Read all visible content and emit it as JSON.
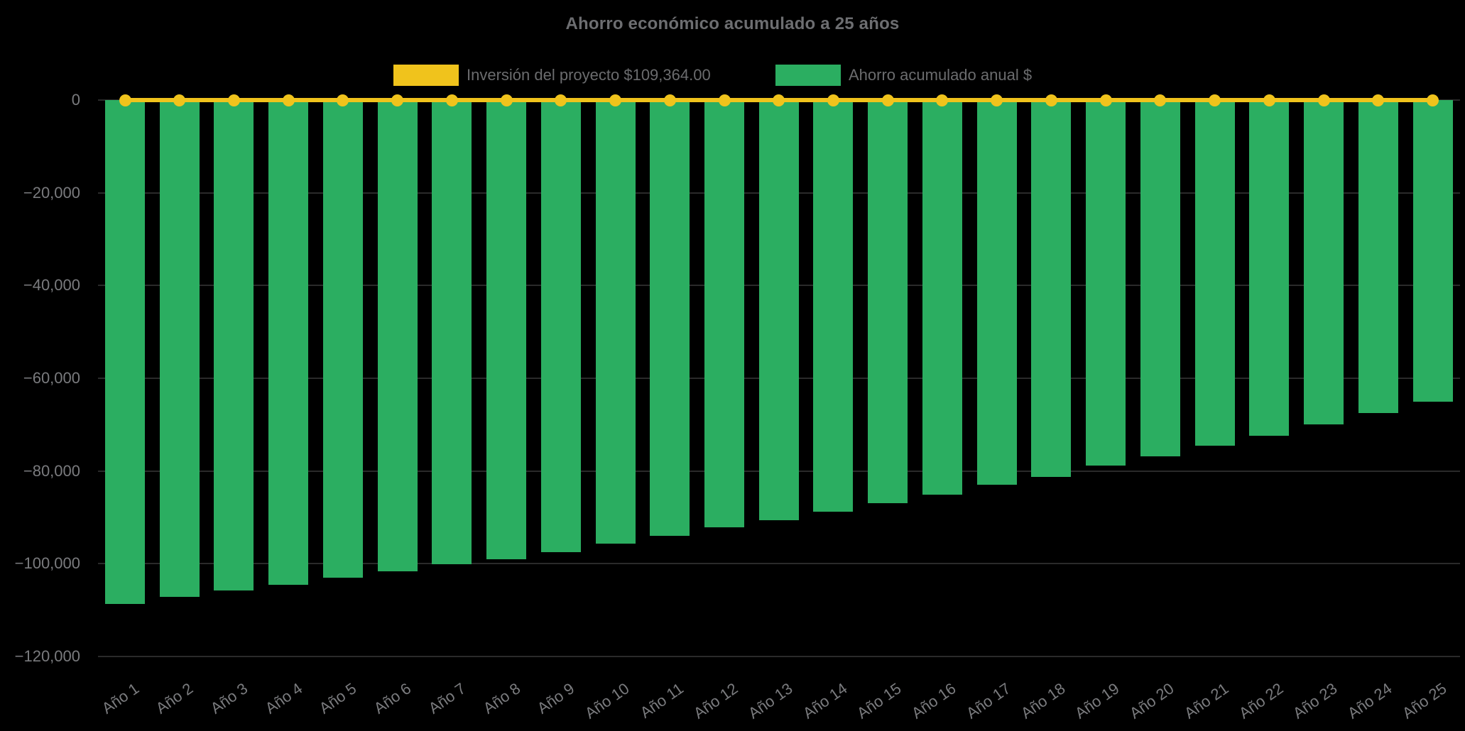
{
  "chart_data": {
    "type": "bar",
    "title": "Ahorro económico acumulado a 25 años",
    "categories": [
      "Año 1",
      "Año 2",
      "Año 3",
      "Año 4",
      "Año 5",
      "Año 6",
      "Año 7",
      "Año 8",
      "Año 9",
      "Año 10",
      "Año 11",
      "Año 12",
      "Año 13",
      "Año 14",
      "Año 15",
      "Año 16",
      "Año 17",
      "Año 18",
      "Año 19",
      "Año 20",
      "Año 21",
      "Año 22",
      "Año 23",
      "Año 24",
      "Año 25"
    ],
    "series": [
      {
        "name": "Inversión del proyecto $109,364.00",
        "type": "line",
        "color": "#F0C31C",
        "values": [
          0,
          0,
          0,
          0,
          0,
          0,
          0,
          0,
          0,
          0,
          0,
          0,
          0,
          0,
          0,
          0,
          0,
          0,
          0,
          0,
          0,
          0,
          0,
          0,
          0
        ]
      },
      {
        "name": "Ahorro acumulado anual $",
        "type": "bar",
        "color": "#2BAE61",
        "values": [
          -108700,
          -107100,
          -105800,
          -104500,
          -103000,
          -101600,
          -100100,
          -99000,
          -97500,
          -95600,
          -94000,
          -92100,
          -90600,
          -88800,
          -86900,
          -85100,
          -83000,
          -81300,
          -78800,
          -76800,
          -74500,
          -72400,
          -70000,
          -67500,
          -65000
        ]
      }
    ],
    "ylim": [
      -120000,
      0
    ],
    "yticks": {
      "values": [
        0,
        -20000,
        -40000,
        -60000,
        -80000,
        -100000,
        -120000
      ],
      "labels": [
        "0",
        "−20,000",
        "−40,000",
        "−60,000",
        "−80,000",
        "−100,000",
        "−120,000"
      ]
    },
    "legend_position": "top",
    "grid": "horizontal-faint",
    "colors": {
      "background": "#000000",
      "title_text": "#6D6E71",
      "legend_text": "#6B6C6E",
      "tick_text": "#7A7B7E",
      "grid_line": "#2A2A2A"
    }
  }
}
